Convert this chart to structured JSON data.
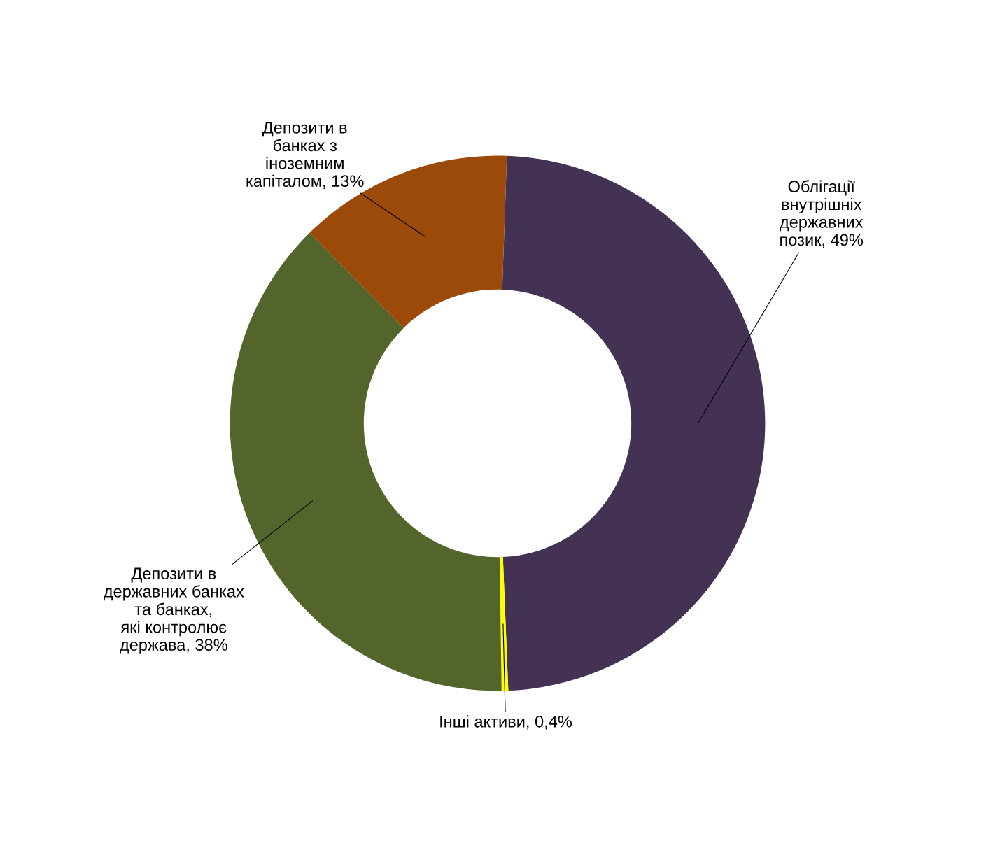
{
  "chart_data": {
    "type": "donut",
    "categories": [
      "Облігації\nвнутрішніх\nдержавних\nпозик",
      "Інші активи",
      "Депозити в\nдержавних банках\nта банках,\nякі контролює\nдержава",
      "Депозити в\nбанках з\nіноземним\nкапіталом"
    ],
    "values": [
      49,
      0.4,
      38,
      13
    ],
    "value_labels": [
      "49%",
      "0,4%",
      "38%",
      "13%"
    ],
    "colors": [
      "#433254",
      "#ffff00",
      "#53652b",
      "#9c4a09"
    ]
  }
}
